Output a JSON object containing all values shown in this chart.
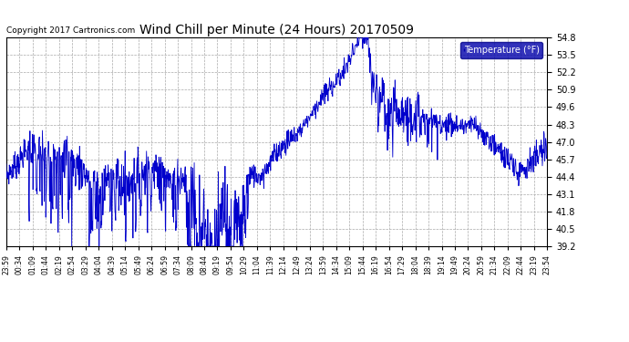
{
  "title": "Wind Chill per Minute (24 Hours) 20170509",
  "copyright": "Copyright 2017 Cartronics.com",
  "legend_label": "Temperature (°F)",
  "line_color": "#0000cc",
  "bg_color": "#ffffff",
  "grid_color": "#aaaaaa",
  "legend_bg": "#0000aa",
  "legend_fg": "#ffffff",
  "yticks": [
    39.2,
    40.5,
    41.8,
    43.1,
    44.4,
    45.7,
    47.0,
    48.3,
    49.6,
    50.9,
    52.2,
    53.5,
    54.8
  ],
  "ymin": 39.2,
  "ymax": 54.8,
  "xtick_labels": [
    "23:59",
    "00:34",
    "01:09",
    "01:44",
    "02:19",
    "02:54",
    "03:29",
    "04:04",
    "04:39",
    "05:14",
    "05:49",
    "06:24",
    "06:59",
    "07:34",
    "08:09",
    "08:44",
    "09:19",
    "09:54",
    "10:29",
    "11:04",
    "11:39",
    "12:14",
    "12:49",
    "13:24",
    "13:59",
    "14:34",
    "15:09",
    "15:44",
    "16:19",
    "16:54",
    "17:29",
    "18:04",
    "18:39",
    "19:14",
    "19:49",
    "20:24",
    "20:59",
    "21:34",
    "22:09",
    "22:44",
    "23:19",
    "23:54"
  ]
}
